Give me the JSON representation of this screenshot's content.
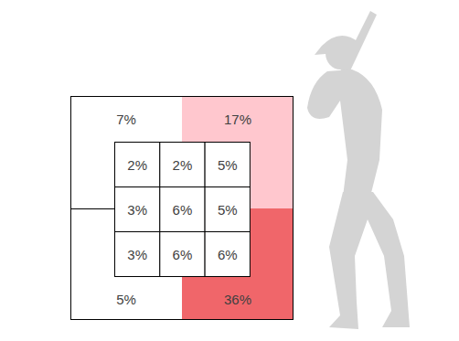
{
  "chart_data": {
    "type": "heatmap",
    "data_labels": true,
    "outer_values": [
      7,
      17,
      5,
      36
    ],
    "outer_value_labels": [
      "7%",
      "17%",
      "5%",
      "36%"
    ],
    "colors": [
      "#ffffff",
      "#ffc7ce",
      "#ffffff",
      "#f0666a"
    ],
    "inner_values": [
      [
        2,
        2,
        5
      ],
      [
        3,
        6,
        5
      ],
      [
        3,
        6,
        6
      ]
    ],
    "inner_value_labels": [
      [
        "2%",
        "2%",
        "5%"
      ],
      [
        "3%",
        "6%",
        "5%"
      ],
      [
        "3%",
        "6%",
        "6%"
      ]
    ]
  }
}
